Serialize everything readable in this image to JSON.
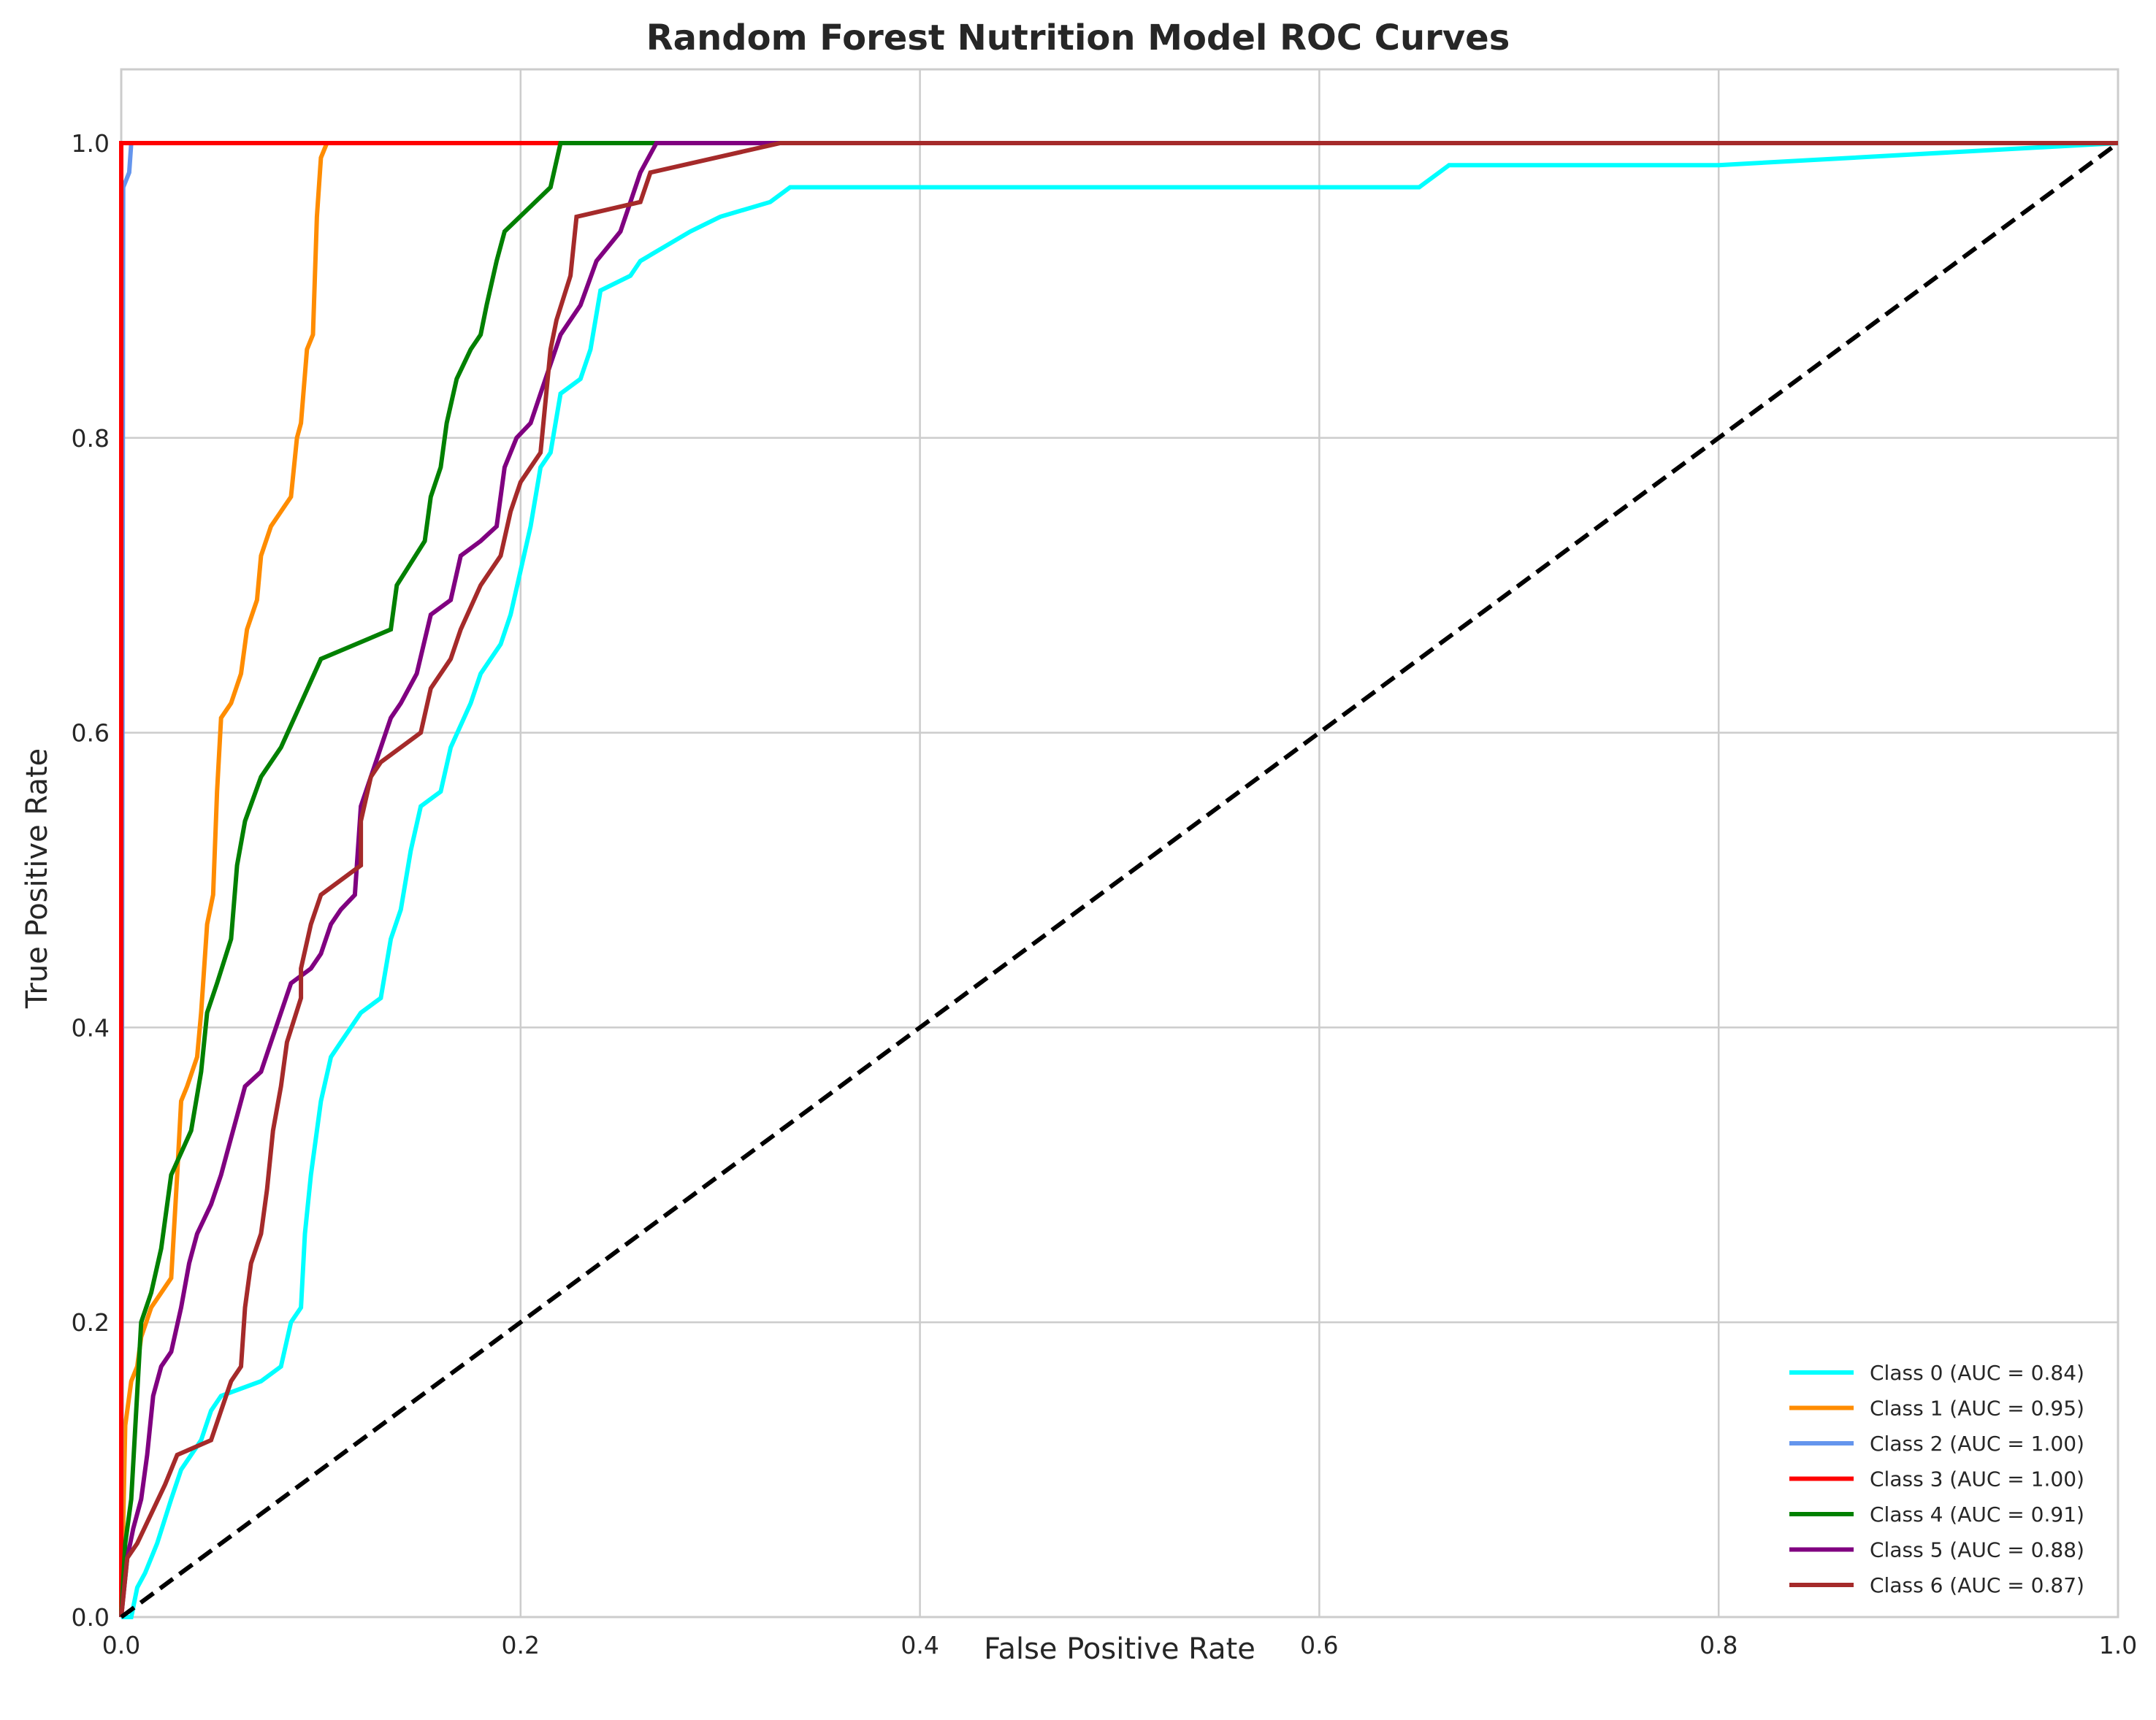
{
  "chart_data": {
    "type": "line",
    "title": "Random Forest Nutrition Model ROC Curves",
    "xlabel": "False Positive Rate",
    "ylabel": "True Positive Rate",
    "xlim": [
      0.0,
      1.0
    ],
    "ylim": [
      0.0,
      1.05
    ],
    "xticks": [
      "0.0",
      "0.2",
      "0.4",
      "0.6",
      "0.8",
      "1.0"
    ],
    "yticks": [
      "0.0",
      "0.2",
      "0.4",
      "0.6",
      "0.8",
      "1.0"
    ],
    "grid": true,
    "legend_position": "lower right",
    "series": [
      {
        "name": "Class 0 (AUC = 0.84)",
        "color": "#00FFFF",
        "points": [
          [
            0,
            0
          ],
          [
            0.005,
            0
          ],
          [
            0.008,
            0.02
          ],
          [
            0.012,
            0.03
          ],
          [
            0.018,
            0.05
          ],
          [
            0.025,
            0.08
          ],
          [
            0.03,
            0.1
          ],
          [
            0.04,
            0.12
          ],
          [
            0.045,
            0.14
          ],
          [
            0.05,
            0.15
          ],
          [
            0.07,
            0.16
          ],
          [
            0.08,
            0.17
          ],
          [
            0.085,
            0.2
          ],
          [
            0.09,
            0.21
          ],
          [
            0.092,
            0.26
          ],
          [
            0.095,
            0.3
          ],
          [
            0.1,
            0.35
          ],
          [
            0.105,
            0.38
          ],
          [
            0.11,
            0.39
          ],
          [
            0.12,
            0.41
          ],
          [
            0.13,
            0.42
          ],
          [
            0.135,
            0.46
          ],
          [
            0.14,
            0.48
          ],
          [
            0.145,
            0.52
          ],
          [
            0.15,
            0.55
          ],
          [
            0.16,
            0.56
          ],
          [
            0.165,
            0.59
          ],
          [
            0.175,
            0.62
          ],
          [
            0.18,
            0.64
          ],
          [
            0.19,
            0.66
          ],
          [
            0.195,
            0.68
          ],
          [
            0.2,
            0.71
          ],
          [
            0.205,
            0.74
          ],
          [
            0.21,
            0.78
          ],
          [
            0.215,
            0.79
          ],
          [
            0.22,
            0.83
          ],
          [
            0.23,
            0.84
          ],
          [
            0.235,
            0.86
          ],
          [
            0.24,
            0.9
          ],
          [
            0.255,
            0.91
          ],
          [
            0.26,
            0.92
          ],
          [
            0.285,
            0.94
          ],
          [
            0.3,
            0.95
          ],
          [
            0.325,
            0.96
          ],
          [
            0.335,
            0.97
          ],
          [
            0.65,
            0.97
          ],
          [
            0.665,
            0.985
          ],
          [
            0.8,
            0.985
          ],
          [
            1.0,
            1.0
          ]
        ]
      },
      {
        "name": "Class 1 (AUC = 0.95)",
        "color": "#FF8C00",
        "points": [
          [
            0,
            0
          ],
          [
            0.002,
            0.13
          ],
          [
            0.005,
            0.16
          ],
          [
            0.008,
            0.17
          ],
          [
            0.01,
            0.19
          ],
          [
            0.015,
            0.21
          ],
          [
            0.02,
            0.22
          ],
          [
            0.025,
            0.23
          ],
          [
            0.028,
            0.3
          ],
          [
            0.03,
            0.35
          ],
          [
            0.033,
            0.36
          ],
          [
            0.038,
            0.38
          ],
          [
            0.04,
            0.41
          ],
          [
            0.043,
            0.47
          ],
          [
            0.046,
            0.49
          ],
          [
            0.048,
            0.56
          ],
          [
            0.05,
            0.61
          ],
          [
            0.055,
            0.62
          ],
          [
            0.06,
            0.64
          ],
          [
            0.063,
            0.67
          ],
          [
            0.068,
            0.69
          ],
          [
            0.07,
            0.72
          ],
          [
            0.075,
            0.74
          ],
          [
            0.085,
            0.76
          ],
          [
            0.088,
            0.8
          ],
          [
            0.09,
            0.81
          ],
          [
            0.093,
            0.86
          ],
          [
            0.096,
            0.87
          ],
          [
            0.098,
            0.95
          ],
          [
            0.1,
            0.99
          ],
          [
            0.103,
            1.0
          ],
          [
            1.0,
            1.0
          ]
        ]
      },
      {
        "name": "Class 2 (AUC = 1.00)",
        "color": "#6495ED",
        "points": [
          [
            0,
            0
          ],
          [
            0.001,
            0.97
          ],
          [
            0.004,
            0.98
          ],
          [
            0.005,
            1.0
          ],
          [
            1.0,
            1.0
          ]
        ]
      },
      {
        "name": "Class 3 (AUC = 1.00)",
        "color": "#FF0000",
        "points": [
          [
            0,
            0
          ],
          [
            0,
            1.0
          ],
          [
            1.0,
            1.0
          ]
        ]
      },
      {
        "name": "Class 4 (AUC = 0.91)",
        "color": "#008000",
        "points": [
          [
            0,
            0
          ],
          [
            0.002,
            0.05
          ],
          [
            0.005,
            0.08
          ],
          [
            0.01,
            0.2
          ],
          [
            0.015,
            0.22
          ],
          [
            0.02,
            0.25
          ],
          [
            0.025,
            0.3
          ],
          [
            0.035,
            0.33
          ],
          [
            0.04,
            0.37
          ],
          [
            0.043,
            0.41
          ],
          [
            0.048,
            0.43
          ],
          [
            0.055,
            0.46
          ],
          [
            0.058,
            0.51
          ],
          [
            0.062,
            0.54
          ],
          [
            0.07,
            0.57
          ],
          [
            0.08,
            0.59
          ],
          [
            0.09,
            0.62
          ],
          [
            0.1,
            0.65
          ],
          [
            0.135,
            0.67
          ],
          [
            0.138,
            0.7
          ],
          [
            0.152,
            0.73
          ],
          [
            0.155,
            0.76
          ],
          [
            0.16,
            0.78
          ],
          [
            0.163,
            0.81
          ],
          [
            0.168,
            0.84
          ],
          [
            0.175,
            0.86
          ],
          [
            0.18,
            0.87
          ],
          [
            0.183,
            0.89
          ],
          [
            0.188,
            0.92
          ],
          [
            0.192,
            0.94
          ],
          [
            0.215,
            0.97
          ],
          [
            0.22,
            1.0
          ],
          [
            1.0,
            1.0
          ]
        ]
      },
      {
        "name": "Class 5 (AUC = 0.88)",
        "color": "#800080",
        "points": [
          [
            0,
            0
          ],
          [
            0.003,
            0.04
          ],
          [
            0.006,
            0.06
          ],
          [
            0.01,
            0.08
          ],
          [
            0.013,
            0.11
          ],
          [
            0.016,
            0.15
          ],
          [
            0.02,
            0.17
          ],
          [
            0.025,
            0.18
          ],
          [
            0.03,
            0.21
          ],
          [
            0.034,
            0.24
          ],
          [
            0.038,
            0.26
          ],
          [
            0.045,
            0.28
          ],
          [
            0.05,
            0.3
          ],
          [
            0.054,
            0.32
          ],
          [
            0.058,
            0.34
          ],
          [
            0.062,
            0.36
          ],
          [
            0.07,
            0.37
          ],
          [
            0.075,
            0.39
          ],
          [
            0.08,
            0.41
          ],
          [
            0.085,
            0.43
          ],
          [
            0.095,
            0.44
          ],
          [
            0.1,
            0.45
          ],
          [
            0.105,
            0.47
          ],
          [
            0.11,
            0.48
          ],
          [
            0.117,
            0.49
          ],
          [
            0.12,
            0.55
          ],
          [
            0.125,
            0.57
          ],
          [
            0.13,
            0.59
          ],
          [
            0.135,
            0.61
          ],
          [
            0.14,
            0.62
          ],
          [
            0.148,
            0.64
          ],
          [
            0.155,
            0.68
          ],
          [
            0.165,
            0.69
          ],
          [
            0.17,
            0.72
          ],
          [
            0.18,
            0.73
          ],
          [
            0.188,
            0.74
          ],
          [
            0.192,
            0.78
          ],
          [
            0.198,
            0.8
          ],
          [
            0.205,
            0.81
          ],
          [
            0.21,
            0.83
          ],
          [
            0.215,
            0.85
          ],
          [
            0.22,
            0.87
          ],
          [
            0.23,
            0.89
          ],
          [
            0.238,
            0.92
          ],
          [
            0.25,
            0.94
          ],
          [
            0.255,
            0.96
          ],
          [
            0.26,
            0.98
          ],
          [
            0.268,
            1.0
          ],
          [
            1.0,
            1.0
          ]
        ]
      },
      {
        "name": "Class 6 (AUC = 0.87)",
        "color": "#A52A2A",
        "points": [
          [
            0,
            0
          ],
          [
            0.003,
            0.04
          ],
          [
            0.008,
            0.05
          ],
          [
            0.015,
            0.07
          ],
          [
            0.022,
            0.09
          ],
          [
            0.028,
            0.11
          ],
          [
            0.045,
            0.12
          ],
          [
            0.05,
            0.14
          ],
          [
            0.055,
            0.16
          ],
          [
            0.06,
            0.17
          ],
          [
            0.062,
            0.21
          ],
          [
            0.065,
            0.24
          ],
          [
            0.07,
            0.26
          ],
          [
            0.073,
            0.29
          ],
          [
            0.076,
            0.33
          ],
          [
            0.08,
            0.36
          ],
          [
            0.083,
            0.39
          ],
          [
            0.09,
            0.42
          ],
          [
            0.09,
            0.44
          ],
          [
            0.095,
            0.47
          ],
          [
            0.1,
            0.49
          ],
          [
            0.12,
            0.51
          ],
          [
            0.12,
            0.54
          ],
          [
            0.125,
            0.57
          ],
          [
            0.13,
            0.58
          ],
          [
            0.15,
            0.6
          ],
          [
            0.155,
            0.63
          ],
          [
            0.165,
            0.65
          ],
          [
            0.17,
            0.67
          ],
          [
            0.18,
            0.7
          ],
          [
            0.19,
            0.72
          ],
          [
            0.195,
            0.75
          ],
          [
            0.2,
            0.77
          ],
          [
            0.21,
            0.79
          ],
          [
            0.215,
            0.86
          ],
          [
            0.218,
            0.88
          ],
          [
            0.225,
            0.91
          ],
          [
            0.228,
            0.95
          ],
          [
            0.26,
            0.96
          ],
          [
            0.265,
            0.98
          ],
          [
            0.33,
            1.0
          ],
          [
            1.0,
            1.0
          ]
        ]
      },
      {
        "name": "",
        "color": "#000000",
        "dashed": true,
        "points": [
          [
            0,
            0
          ],
          [
            1.0,
            1.0
          ]
        ]
      }
    ]
  }
}
